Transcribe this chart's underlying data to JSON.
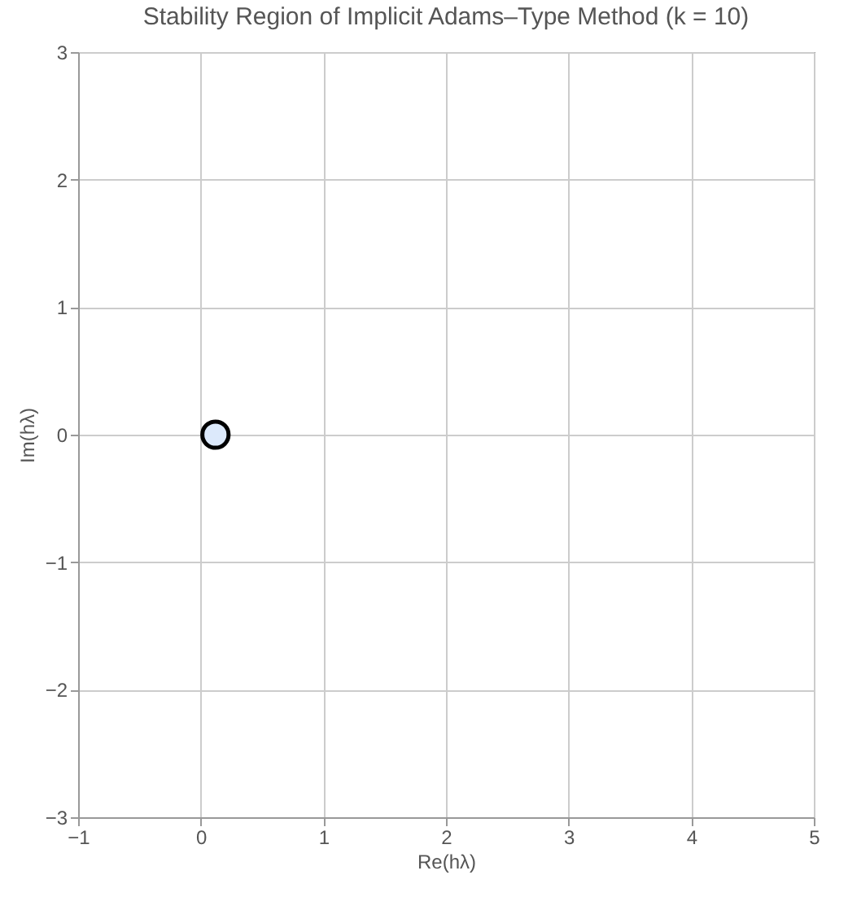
{
  "chart_data": {
    "type": "scatter",
    "title": "Stability Region of Implicit Adams–Type Method (k = 10)",
    "xlabel": "Re(hλ)",
    "ylabel": "Im(hλ)",
    "xlim": [
      -1,
      5
    ],
    "ylim": [
      -3,
      3
    ],
    "xticks": [
      -1,
      0,
      1,
      2,
      3,
      4,
      5
    ],
    "yticks": [
      -3,
      -2,
      -1,
      0,
      1,
      2,
      3
    ],
    "grid": true,
    "marker": "circle",
    "x": [
      0.12
    ],
    "values": [
      0
    ],
    "color": "#dce9fb"
  }
}
